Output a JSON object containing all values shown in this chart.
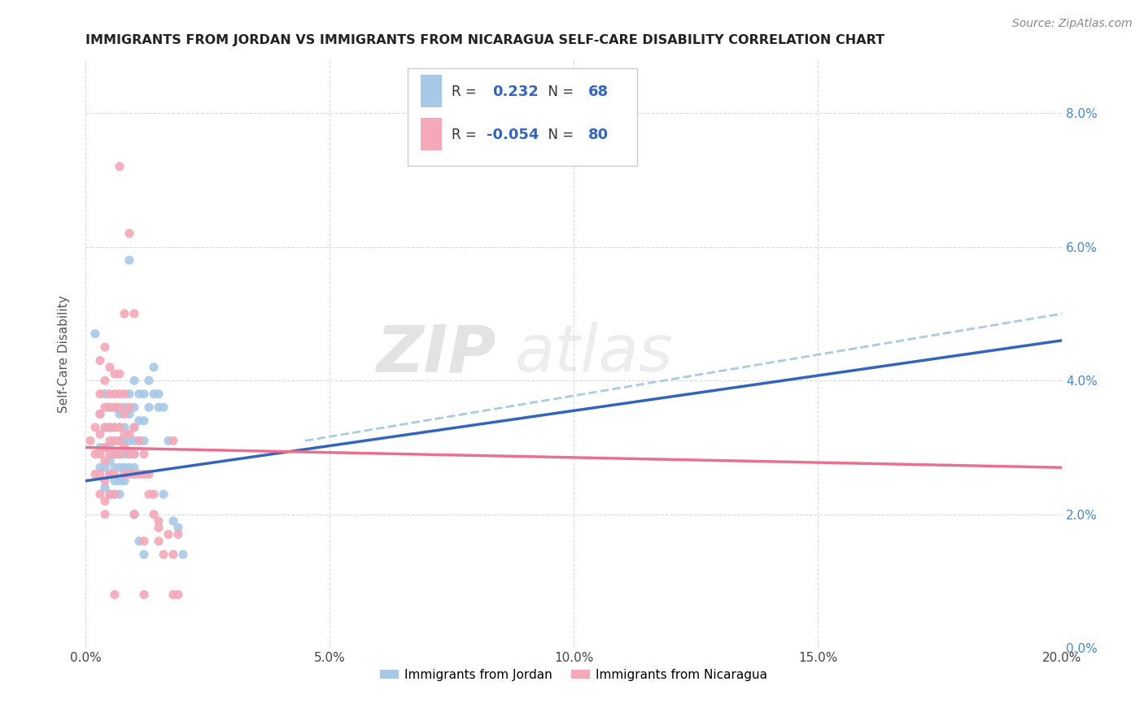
{
  "title": "IMMIGRANTS FROM JORDAN VS IMMIGRANTS FROM NICARAGUA SELF-CARE DISABILITY CORRELATION CHART",
  "source": "Source: ZipAtlas.com",
  "ylabel": "Self-Care Disability",
  "xlim": [
    0.0,
    0.2
  ],
  "ylim": [
    0.0,
    0.088
  ],
  "xticks": [
    0.0,
    0.05,
    0.1,
    0.15,
    0.2
  ],
  "yticks": [
    0.0,
    0.02,
    0.04,
    0.06,
    0.08
  ],
  "jordan_color": "#a8c8e8",
  "nicaragua_color": "#f4a8b8",
  "jordan_R": 0.232,
  "jordan_N": 68,
  "nicaragua_R": -0.054,
  "nicaragua_N": 80,
  "jordan_line_color": "#3366bb",
  "nicaragua_line_color": "#e87090",
  "dash_line_color": "#aaccdd",
  "background_color": "#ffffff",
  "grid_color": "#cccccc",
  "right_axis_color": "#4488cc",
  "legend_R_color": "#3366bb",
  "legend_N_color": "#3366bb",
  "jordan_scatter": [
    [
      0.002,
      0.047
    ],
    [
      0.003,
      0.035
    ],
    [
      0.003,
      0.03
    ],
    [
      0.003,
      0.027
    ],
    [
      0.004,
      0.038
    ],
    [
      0.004,
      0.033
    ],
    [
      0.004,
      0.03
    ],
    [
      0.004,
      0.027
    ],
    [
      0.004,
      0.024
    ],
    [
      0.005,
      0.036
    ],
    [
      0.005,
      0.033
    ],
    [
      0.005,
      0.03
    ],
    [
      0.005,
      0.028
    ],
    [
      0.005,
      0.026
    ],
    [
      0.005,
      0.023
    ],
    [
      0.006,
      0.036
    ],
    [
      0.006,
      0.033
    ],
    [
      0.006,
      0.031
    ],
    [
      0.006,
      0.029
    ],
    [
      0.006,
      0.027
    ],
    [
      0.006,
      0.025
    ],
    [
      0.006,
      0.023
    ],
    [
      0.007,
      0.035
    ],
    [
      0.007,
      0.033
    ],
    [
      0.007,
      0.031
    ],
    [
      0.007,
      0.029
    ],
    [
      0.007,
      0.027
    ],
    [
      0.007,
      0.025
    ],
    [
      0.007,
      0.023
    ],
    [
      0.008,
      0.036
    ],
    [
      0.008,
      0.033
    ],
    [
      0.008,
      0.031
    ],
    [
      0.008,
      0.029
    ],
    [
      0.008,
      0.027
    ],
    [
      0.008,
      0.025
    ],
    [
      0.009,
      0.038
    ],
    [
      0.009,
      0.035
    ],
    [
      0.009,
      0.031
    ],
    [
      0.009,
      0.029
    ],
    [
      0.009,
      0.027
    ],
    [
      0.009,
      0.058
    ],
    [
      0.01,
      0.04
    ],
    [
      0.01,
      0.036
    ],
    [
      0.01,
      0.033
    ],
    [
      0.01,
      0.031
    ],
    [
      0.01,
      0.029
    ],
    [
      0.01,
      0.027
    ],
    [
      0.01,
      0.02
    ],
    [
      0.011,
      0.038
    ],
    [
      0.011,
      0.034
    ],
    [
      0.011,
      0.031
    ],
    [
      0.011,
      0.016
    ],
    [
      0.012,
      0.038
    ],
    [
      0.012,
      0.034
    ],
    [
      0.012,
      0.031
    ],
    [
      0.012,
      0.014
    ],
    [
      0.013,
      0.04
    ],
    [
      0.013,
      0.036
    ],
    [
      0.014,
      0.042
    ],
    [
      0.014,
      0.038
    ],
    [
      0.015,
      0.038
    ],
    [
      0.015,
      0.036
    ],
    [
      0.016,
      0.036
    ],
    [
      0.016,
      0.023
    ],
    [
      0.017,
      0.031
    ],
    [
      0.018,
      0.019
    ],
    [
      0.019,
      0.018
    ],
    [
      0.02,
      0.014
    ]
  ],
  "nicaragua_scatter": [
    [
      0.001,
      0.031
    ],
    [
      0.002,
      0.033
    ],
    [
      0.002,
      0.029
    ],
    [
      0.002,
      0.026
    ],
    [
      0.003,
      0.043
    ],
    [
      0.003,
      0.038
    ],
    [
      0.003,
      0.035
    ],
    [
      0.003,
      0.032
    ],
    [
      0.003,
      0.029
    ],
    [
      0.003,
      0.026
    ],
    [
      0.003,
      0.023
    ],
    [
      0.004,
      0.045
    ],
    [
      0.004,
      0.04
    ],
    [
      0.004,
      0.036
    ],
    [
      0.004,
      0.033
    ],
    [
      0.004,
      0.03
    ],
    [
      0.004,
      0.028
    ],
    [
      0.004,
      0.025
    ],
    [
      0.004,
      0.022
    ],
    [
      0.004,
      0.02
    ],
    [
      0.005,
      0.042
    ],
    [
      0.005,
      0.038
    ],
    [
      0.005,
      0.036
    ],
    [
      0.005,
      0.033
    ],
    [
      0.005,
      0.031
    ],
    [
      0.005,
      0.029
    ],
    [
      0.005,
      0.026
    ],
    [
      0.005,
      0.023
    ],
    [
      0.006,
      0.041
    ],
    [
      0.006,
      0.038
    ],
    [
      0.006,
      0.036
    ],
    [
      0.006,
      0.033
    ],
    [
      0.006,
      0.031
    ],
    [
      0.006,
      0.029
    ],
    [
      0.006,
      0.026
    ],
    [
      0.006,
      0.023
    ],
    [
      0.006,
      0.008
    ],
    [
      0.007,
      0.072
    ],
    [
      0.007,
      0.041
    ],
    [
      0.007,
      0.038
    ],
    [
      0.007,
      0.036
    ],
    [
      0.007,
      0.033
    ],
    [
      0.007,
      0.031
    ],
    [
      0.007,
      0.029
    ],
    [
      0.008,
      0.05
    ],
    [
      0.008,
      0.038
    ],
    [
      0.008,
      0.035
    ],
    [
      0.008,
      0.032
    ],
    [
      0.008,
      0.03
    ],
    [
      0.008,
      0.026
    ],
    [
      0.009,
      0.062
    ],
    [
      0.009,
      0.036
    ],
    [
      0.009,
      0.032
    ],
    [
      0.009,
      0.029
    ],
    [
      0.009,
      0.026
    ],
    [
      0.01,
      0.033
    ],
    [
      0.01,
      0.029
    ],
    [
      0.01,
      0.026
    ],
    [
      0.01,
      0.02
    ],
    [
      0.011,
      0.031
    ],
    [
      0.011,
      0.026
    ],
    [
      0.012,
      0.029
    ],
    [
      0.012,
      0.026
    ],
    [
      0.012,
      0.016
    ],
    [
      0.012,
      0.008
    ],
    [
      0.013,
      0.026
    ],
    [
      0.013,
      0.023
    ],
    [
      0.014,
      0.023
    ],
    [
      0.014,
      0.02
    ],
    [
      0.015,
      0.019
    ],
    [
      0.015,
      0.016
    ],
    [
      0.016,
      0.014
    ],
    [
      0.017,
      0.017
    ],
    [
      0.018,
      0.031
    ],
    [
      0.018,
      0.014
    ],
    [
      0.018,
      0.008
    ],
    [
      0.019,
      0.017
    ],
    [
      0.01,
      0.05
    ],
    [
      0.015,
      0.018
    ],
    [
      0.019,
      0.008
    ]
  ],
  "jordan_line_x": [
    0.0,
    0.2
  ],
  "jordan_line_y": [
    0.025,
    0.046
  ],
  "nicaragua_line_x": [
    0.0,
    0.2
  ],
  "nicaragua_line_y": [
    0.03,
    0.027
  ],
  "dash_line_x": [
    0.045,
    0.2
  ],
  "dash_line_y": [
    0.031,
    0.05
  ]
}
